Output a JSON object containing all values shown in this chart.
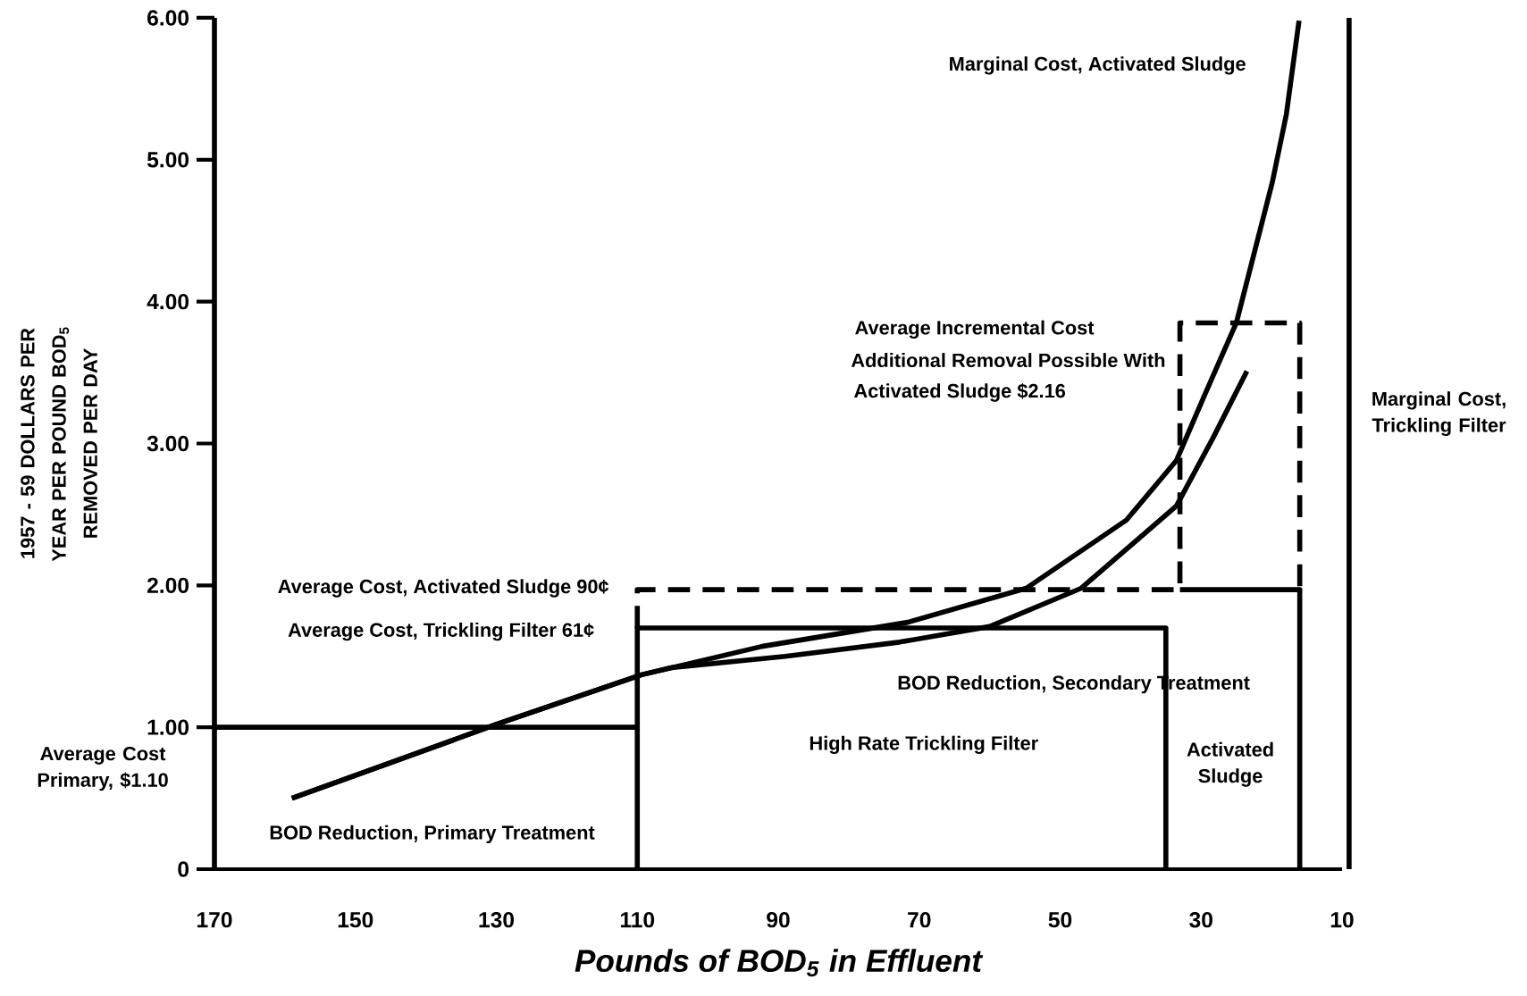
{
  "chart_data": {
    "type": "line",
    "xlabel": "Pounds of BOD$_{5}$ in Effluent",
    "ylabel": "1957 - 59 DOLLARS PER YEAR PER POUND BOD$_{5}$ REMOVED PER DAY",
    "xlim": [
      170,
      10
    ],
    "xticks": [
      170,
      150,
      130,
      110,
      90,
      70,
      50,
      30,
      10
    ],
    "ylim": [
      0,
      6
    ],
    "yticks": [
      0,
      {
        "value": 1,
        "label": "1.00"
      },
      {
        "value": 2,
        "label": "2.00"
      },
      {
        "value": 3,
        "label": "3.00"
      },
      {
        "value": 4,
        "label": "4.00"
      },
      {
        "value": 5,
        "label": "5.00"
      },
      {
        "value": 6,
        "label": "6.00"
      }
    ],
    "grid": false,
    "marker": "none",
    "series": [
      {
        "color": "#000000",
        "line_style": "solid",
        "x": [
          159,
          130,
          109.4,
          92.3,
          71.6,
          54.8,
          40.6,
          33.5,
          29.6,
          25.0,
          19.9,
          17.9,
          16.1
        ],
        "values": [
          0.5,
          1.02,
          1.37,
          1.57,
          1.74,
          1.98,
          2.46,
          2.88,
          3.33,
          3.85,
          4.84,
          5.32,
          5.98
        ]
      },
      {
        "color": "#000000",
        "line_style": "solid",
        "x": [
          159,
          130,
          109.4,
          105.2,
          89.0,
          72.8,
          60.0,
          47.0,
          33.5,
          28.3,
          23.5
        ],
        "values": [
          0.5,
          1.02,
          1.37,
          1.42,
          1.5,
          1.6,
          1.71,
          1.98,
          2.56,
          3.04,
          3.51
        ]
      },
      {
        "color": "#000000",
        "line_style": "solid",
        "x": [
          170,
          110
        ],
        "values": [
          1.0,
          1.0
        ]
      },
      {
        "color": "#000000",
        "line_style": "solid",
        "x": [
          110,
          110,
          35,
          35
        ],
        "values": [
          0,
          1.7,
          1.7,
          0
        ]
      },
      {
        "color": "#000000",
        "line_style": "solid",
        "x": [
          33,
          16,
          16
        ],
        "values": [
          1.97,
          1.97,
          0
        ]
      },
      {
        "color": "#000000",
        "line_style": "dashed",
        "x": [
          110,
          110,
          33,
          33,
          16,
          16
        ],
        "values": [
          1.7,
          1.97,
          1.97,
          3.85,
          3.85,
          1.97
        ]
      }
    ],
    "ref_lines": [
      {
        "axis": "x",
        "value": 170,
        "color": "#000000"
      },
      {
        "axis": "x",
        "value": 9,
        "color": "#000000"
      }
    ],
    "annotations": [
      "Marginal Cost, Activated Sludge",
      "Average Incremental Cost",
      "Additional Removal Possible With",
      "Activated Sludge $2.16",
      "Marginal Cost, Trickling Filter",
      "Average Cost, Activated Sludge 90¢",
      "Average Cost, Trickling Filter 61¢",
      "Average Cost Primary, $1.10",
      "BOD Reduction, Primary Treatment",
      "BOD Reduction, Secondary Treatment",
      "High Rate Trickling Filter",
      "Activated Sludge"
    ]
  }
}
